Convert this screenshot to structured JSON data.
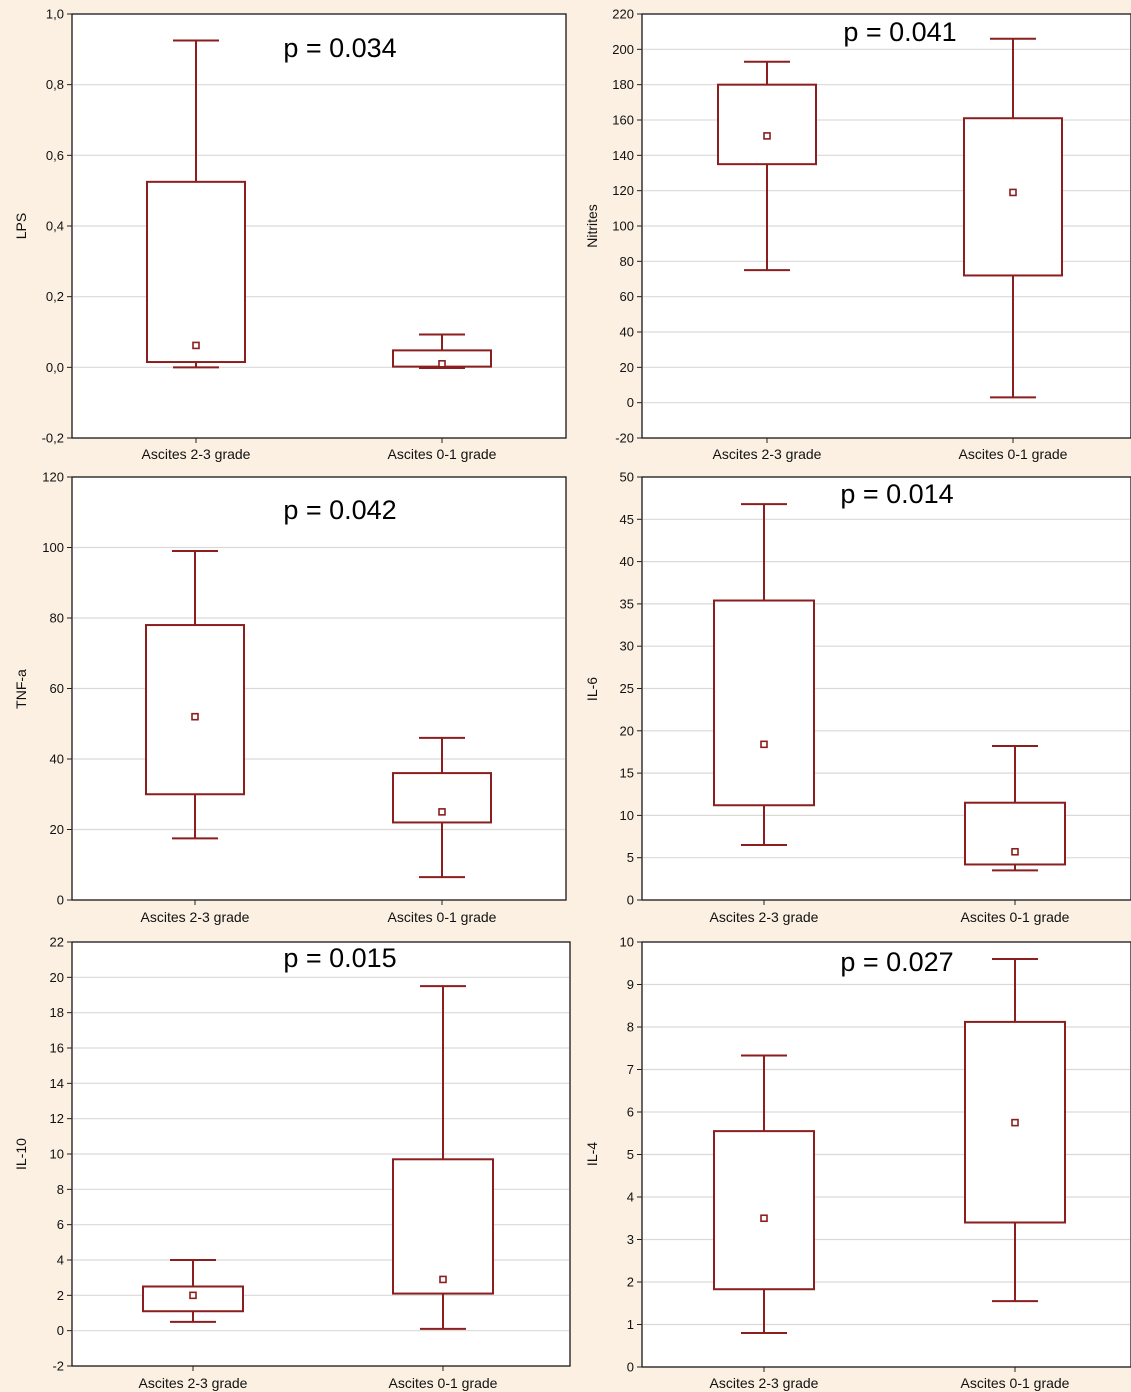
{
  "chart_data": [
    {
      "type": "box",
      "ylabel": "LPS",
      "p_value": "p = 0.034",
      "ylim": [
        -0.2,
        1.0
      ],
      "yticks": [
        -0.2,
        0.0,
        0.2,
        0.4,
        0.6,
        0.8,
        1.0
      ],
      "ytick_labels": [
        "-0,2",
        "0,0",
        "0,2",
        "0,4",
        "0,6",
        "0,8",
        "1,0"
      ],
      "grid": true,
      "categories": [
        "Ascites 2-3 grade",
        "Ascites 0-1 grade"
      ],
      "boxes": [
        {
          "whisker_low": 0.0,
          "q1": 0.015,
          "median": 0.062,
          "q3": 0.525,
          "whisker_high": 0.925
        },
        {
          "whisker_low": -0.002,
          "q1": 0.002,
          "median": 0.01,
          "q3": 0.048,
          "whisker_high": 0.093
        }
      ]
    },
    {
      "type": "box",
      "ylabel": "Nitrites",
      "p_value": "p = 0.041",
      "ylim": [
        -20,
        220
      ],
      "yticks": [
        -20,
        0,
        20,
        40,
        60,
        80,
        100,
        120,
        140,
        160,
        180,
        200,
        220
      ],
      "ytick_labels": [
        "-20",
        "0",
        "20",
        "40",
        "60",
        "80",
        "100",
        "120",
        "140",
        "160",
        "180",
        "200",
        "220"
      ],
      "grid": true,
      "categories": [
        "Ascites 2-3 grade",
        "Ascites 0-1 grade"
      ],
      "boxes": [
        {
          "whisker_low": 75,
          "q1": 135,
          "median": 151,
          "q3": 180,
          "whisker_high": 193
        },
        {
          "whisker_low": 3,
          "q1": 72,
          "median": 119,
          "q3": 161,
          "whisker_high": 206
        }
      ]
    },
    {
      "type": "box",
      "ylabel": "TNF-a",
      "p_value": "p = 0.042",
      "ylim": [
        0,
        120
      ],
      "yticks": [
        0,
        20,
        40,
        60,
        80,
        100,
        120
      ],
      "ytick_labels": [
        "0",
        "20",
        "40",
        "60",
        "80",
        "100",
        "120"
      ],
      "grid": true,
      "categories": [
        "Ascites 2-3 grade",
        "Ascites 0-1 grade"
      ],
      "boxes": [
        {
          "whisker_low": 17.5,
          "q1": 30,
          "median": 52,
          "q3": 78,
          "whisker_high": 99
        },
        {
          "whisker_low": 6.5,
          "q1": 22,
          "median": 25,
          "q3": 36,
          "whisker_high": 46
        }
      ]
    },
    {
      "type": "box",
      "ylabel": "IL-6",
      "p_value": "p = 0.014",
      "ylim": [
        0,
        50
      ],
      "yticks": [
        0,
        5,
        10,
        15,
        20,
        25,
        30,
        35,
        40,
        45,
        50
      ],
      "ytick_labels": [
        "0",
        "5",
        "10",
        "15",
        "20",
        "25",
        "30",
        "35",
        "40",
        "45",
        "50"
      ],
      "grid": true,
      "categories": [
        "Ascites 2-3 grade",
        "Ascites 0-1 grade"
      ],
      "boxes": [
        {
          "whisker_low": 6.5,
          "q1": 11.2,
          "median": 18.4,
          "q3": 35.4,
          "whisker_high": 46.8
        },
        {
          "whisker_low": 3.5,
          "q1": 4.2,
          "median": 5.7,
          "q3": 11.5,
          "whisker_high": 18.2
        }
      ]
    },
    {
      "type": "box",
      "ylabel": "IL-10",
      "p_value": "p = 0.015",
      "ylim": [
        -2,
        22
      ],
      "yticks": [
        -2,
        0,
        2,
        4,
        6,
        8,
        10,
        12,
        14,
        16,
        18,
        20,
        22
      ],
      "ytick_labels": [
        "-2",
        "0",
        "2",
        "4",
        "6",
        "8",
        "10",
        "12",
        "14",
        "16",
        "18",
        "20",
        "22"
      ],
      "grid": true,
      "categories": [
        "Ascites 2-3 grade",
        "Ascites 0-1 grade"
      ],
      "boxes": [
        {
          "whisker_low": 0.5,
          "q1": 1.1,
          "median": 2.0,
          "q3": 2.5,
          "whisker_high": 4.0
        },
        {
          "whisker_low": 0.1,
          "q1": 2.1,
          "median": 2.9,
          "q3": 9.7,
          "whisker_high": 19.5
        }
      ]
    },
    {
      "type": "box",
      "ylabel": "IL-4",
      "p_value": "p = 0.027",
      "ylim": [
        0,
        10
      ],
      "yticks": [
        0,
        1,
        2,
        3,
        4,
        5,
        6,
        7,
        8,
        9,
        10
      ],
      "ytick_labels": [
        "0",
        "1",
        "2",
        "3",
        "4",
        "5",
        "6",
        "7",
        "8",
        "9",
        "10"
      ],
      "grid": true,
      "categories": [
        "Ascites 2-3 grade",
        "Ascites 0-1 grade"
      ],
      "boxes": [
        {
          "whisker_low": 0.8,
          "q1": 1.83,
          "median": 3.5,
          "q3": 5.55,
          "whisker_high": 7.33
        },
        {
          "whisker_low": 1.55,
          "q1": 3.4,
          "median": 5.75,
          "q3": 8.12,
          "whisker_high": 9.6
        }
      ]
    }
  ]
}
